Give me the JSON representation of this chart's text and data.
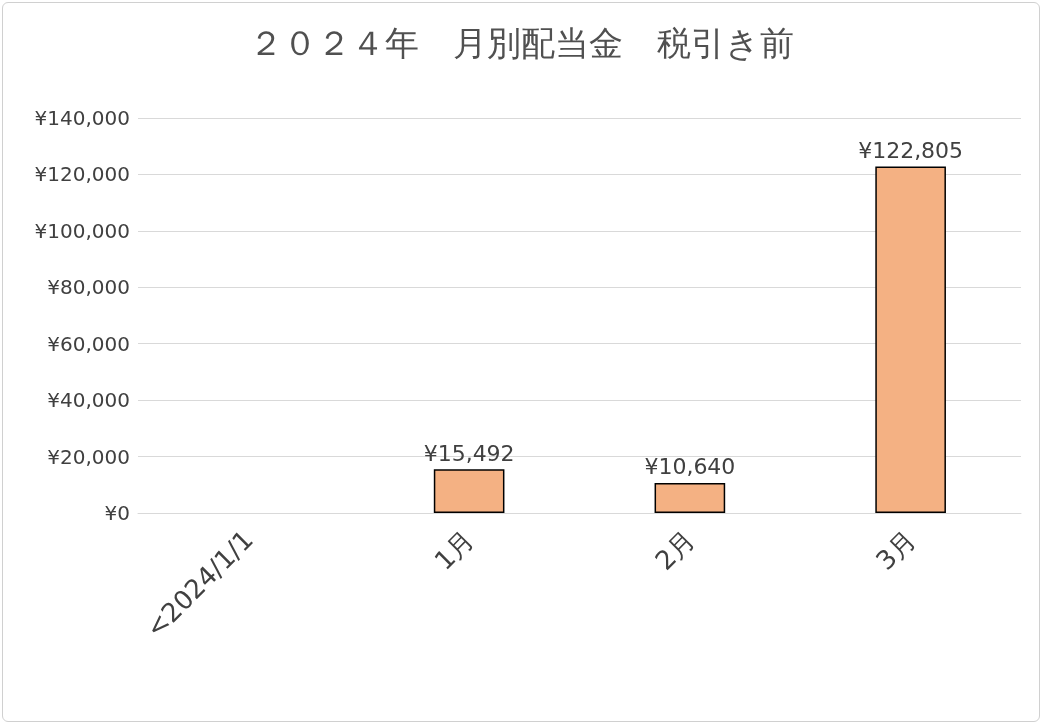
{
  "chart_data": {
    "type": "bar",
    "title": "２０２４年　月別配当金　税引き前",
    "categories": [
      "<2024/1/1",
      "1月",
      "2月",
      "3月"
    ],
    "values": [
      null,
      15492,
      10640,
      122805
    ],
    "value_labels": [
      null,
      "¥15,492",
      "¥10,640",
      "¥122,805"
    ],
    "color": "#f4b183",
    "ylim": [
      0,
      140000
    ],
    "yticks": [
      {
        "value": 0,
        "label": "¥0"
      },
      {
        "value": 20000,
        "label": "¥20,000"
      },
      {
        "value": 40000,
        "label": "¥40,000"
      },
      {
        "value": 60000,
        "label": "¥60,000"
      },
      {
        "value": 80000,
        "label": "¥80,000"
      },
      {
        "value": 100000,
        "label": "¥100,000"
      },
      {
        "value": 120000,
        "label": "¥120,000"
      },
      {
        "value": 140000,
        "label": "¥140,000"
      }
    ],
    "grid": "y"
  }
}
